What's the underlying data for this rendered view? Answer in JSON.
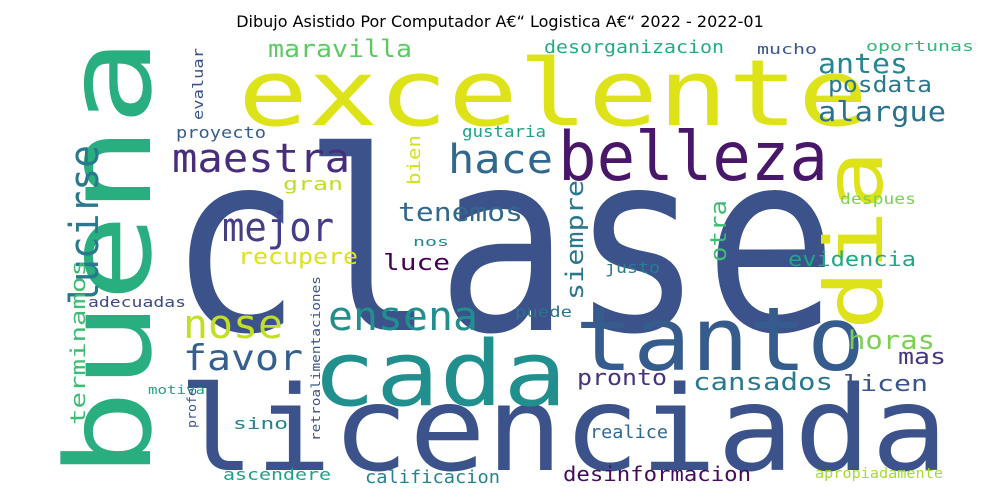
{
  "title": "Dibujo Asistido Por Computador A€“ Logistica A€“ 2022 - 2022-01",
  "words": [
    {
      "text": "clase",
      "color": "#3b528b"
    },
    {
      "text": "licenciada",
      "color": "#3b528b"
    },
    {
      "text": "excelente",
      "color": "#dde318"
    },
    {
      "text": "cada",
      "color": "#218f8d"
    },
    {
      "text": "buena",
      "color": "#29af7f"
    },
    {
      "text": "tanto",
      "color": "#365c8d"
    },
    {
      "text": "belleza",
      "color": "#481769"
    },
    {
      "text": "dia",
      "color": "#dde318"
    },
    {
      "text": "maestra",
      "color": "#472d7b"
    },
    {
      "text": "hace",
      "color": "#31688e"
    },
    {
      "text": "lucirse",
      "color": "#2a788e"
    },
    {
      "text": "mejor",
      "color": "#433e85"
    },
    {
      "text": "ensena",
      "color": "#218f8d"
    },
    {
      "text": "nose",
      "color": "#c2df23"
    },
    {
      "text": "favor",
      "color": "#355f8d"
    },
    {
      "text": "alargue",
      "color": "#2c728e"
    },
    {
      "text": "antes",
      "color": "#24868e"
    },
    {
      "text": "maravilla",
      "color": "#5ec962"
    },
    {
      "text": "posdata",
      "color": "#2a788e"
    },
    {
      "text": "tenemos",
      "color": "#31688e"
    },
    {
      "text": "luce",
      "color": "#440154"
    },
    {
      "text": "horas",
      "color": "#7ad151"
    },
    {
      "text": "cansados",
      "color": "#2a788e"
    },
    {
      "text": "licen",
      "color": "#39558c"
    },
    {
      "text": "pronto",
      "color": "#46337f"
    },
    {
      "text": "mas",
      "color": "#443983"
    },
    {
      "text": "terminamos",
      "color": "#3fbc73"
    },
    {
      "text": "recupere",
      "color": "#dde318"
    },
    {
      "text": "siempre",
      "color": "#2a788e"
    },
    {
      "text": "otra",
      "color": "#3dbc74"
    },
    {
      "text": "evidencia",
      "color": "#22a785"
    },
    {
      "text": "gran",
      "color": "#bddf26"
    },
    {
      "text": "bien",
      "color": "#d2e21b"
    },
    {
      "text": "desorganizacion",
      "color": "#25ab82"
    },
    {
      "text": "desinformacion",
      "color": "#460b5e"
    },
    {
      "text": "calificacion",
      "color": "#25838e"
    },
    {
      "text": "ascendere",
      "color": "#1f9e89"
    },
    {
      "text": "realice",
      "color": "#31678e"
    },
    {
      "text": "justo",
      "color": "#287d8e"
    },
    {
      "text": "proyecto",
      "color": "#365d8d"
    },
    {
      "text": "gustaria",
      "color": "#1fa187"
    },
    {
      "text": "evaluar",
      "color": "#3b528b"
    },
    {
      "text": "mucho",
      "color": "#39568c"
    },
    {
      "text": "oportunas",
      "color": "#35b779"
    },
    {
      "text": "despues",
      "color": "#7ad151"
    },
    {
      "text": "nos",
      "color": "#25858e"
    },
    {
      "text": "puede",
      "color": "#2c718e"
    },
    {
      "text": "sino",
      "color": "#26828e"
    },
    {
      "text": "adecuadas",
      "color": "#3e4989"
    },
    {
      "text": "motiva",
      "color": "#20a386"
    },
    {
      "text": "profe",
      "color": "#3b528b"
    },
    {
      "text": "retroalimentaciones",
      "color": "#3a548c"
    },
    {
      "text": "apropiadamente",
      "color": "#a5db36"
    }
  ]
}
